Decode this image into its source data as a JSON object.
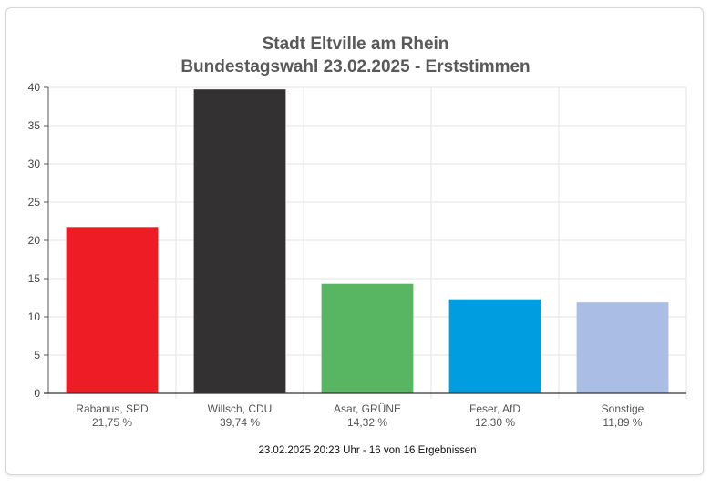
{
  "chart_data": {
    "type": "bar",
    "title": "Stadt Eltville am Rhein",
    "subtitle": "Bundestagswahl 23.02.2025  - Erststimmen",
    "categories": [
      "Rabanus, SPD",
      "Willsch, CDU",
      "Asar, GRÜNE",
      "Feser, AfD",
      "Sonstige"
    ],
    "values": [
      21.75,
      39.74,
      14.32,
      12.3,
      11.89
    ],
    "value_labels": [
      "21,75 %",
      "39,74 %",
      "14,32 %",
      "12,30 %",
      "11,89 %"
    ],
    "colors": [
      "#ee1c25",
      "#333132",
      "#58b562",
      "#009ee0",
      "#a9bde5"
    ],
    "ylim": [
      0,
      40
    ],
    "yticks": [
      0,
      5,
      10,
      15,
      20,
      25,
      30,
      35,
      40
    ],
    "grid": true,
    "xlabel": "",
    "ylabel": "",
    "footer": "23.02.2025 20:23 Uhr - 16 von 16 Ergebnissen"
  }
}
